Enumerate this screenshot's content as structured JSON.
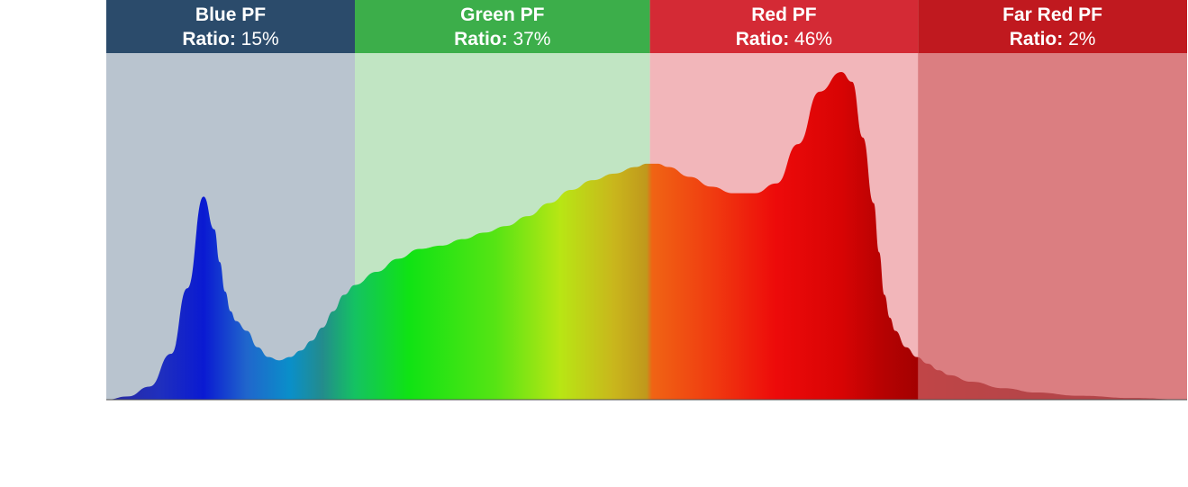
{
  "chart_data": {
    "type": "area",
    "title": "",
    "xlabel": "",
    "ylabel": "",
    "bands": [
      {
        "name": "Blue PF",
        "ratio_prefix": "Ratio:",
        "ratio_value": "15%",
        "header_color": "#2b4b6b",
        "fill_color": "#b9c4cf"
      },
      {
        "name": "Green PF",
        "ratio_prefix": "Ratio:",
        "ratio_value": "37%",
        "header_color": "#3cae4a",
        "fill_color": "#c1e5c3"
      },
      {
        "name": "Red PF",
        "ratio_prefix": "Ratio:",
        "ratio_value": "46%",
        "header_color": "#d42a35",
        "fill_color": "#f2b6ba"
      },
      {
        "name": "Far Red PF",
        "ratio_prefix": "Ratio:",
        "ratio_value": "2%",
        "header_color": "#c0191f",
        "fill_color": "#db7e82"
      }
    ],
    "band_widths": [
      0.23,
      0.273,
      0.248,
      0.249
    ],
    "spectrum": {
      "x": [
        0,
        0.02,
        0.04,
        0.06,
        0.075,
        0.09,
        0.1,
        0.105,
        0.11,
        0.115,
        0.12,
        0.13,
        0.14,
        0.15,
        0.16,
        0.17,
        0.18,
        0.19,
        0.2,
        0.21,
        0.22,
        0.23,
        0.25,
        0.27,
        0.29,
        0.31,
        0.33,
        0.35,
        0.37,
        0.39,
        0.41,
        0.43,
        0.45,
        0.47,
        0.49,
        0.5,
        0.51,
        0.52,
        0.54,
        0.56,
        0.58,
        0.6,
        0.62,
        0.64,
        0.66,
        0.68,
        0.69,
        0.7,
        0.71,
        0.715,
        0.72,
        0.725,
        0.73,
        0.74,
        0.75,
        0.76,
        0.77,
        0.78,
        0.8,
        0.83,
        0.86,
        0.9,
        0.95,
        1.0
      ],
      "y": [
        0,
        0.01,
        0.04,
        0.14,
        0.34,
        0.62,
        0.52,
        0.42,
        0.33,
        0.27,
        0.24,
        0.21,
        0.16,
        0.13,
        0.12,
        0.13,
        0.15,
        0.18,
        0.22,
        0.27,
        0.32,
        0.35,
        0.39,
        0.43,
        0.46,
        0.47,
        0.49,
        0.51,
        0.53,
        0.56,
        0.6,
        0.64,
        0.67,
        0.69,
        0.71,
        0.72,
        0.72,
        0.71,
        0.68,
        0.65,
        0.63,
        0.63,
        0.66,
        0.78,
        0.94,
        1.0,
        0.97,
        0.8,
        0.6,
        0.45,
        0.32,
        0.25,
        0.21,
        0.16,
        0.13,
        0.11,
        0.09,
        0.075,
        0.055,
        0.035,
        0.022,
        0.012,
        0.005,
        0
      ],
      "ylim": [
        0,
        1
      ]
    },
    "grid": false,
    "legend": "top"
  }
}
